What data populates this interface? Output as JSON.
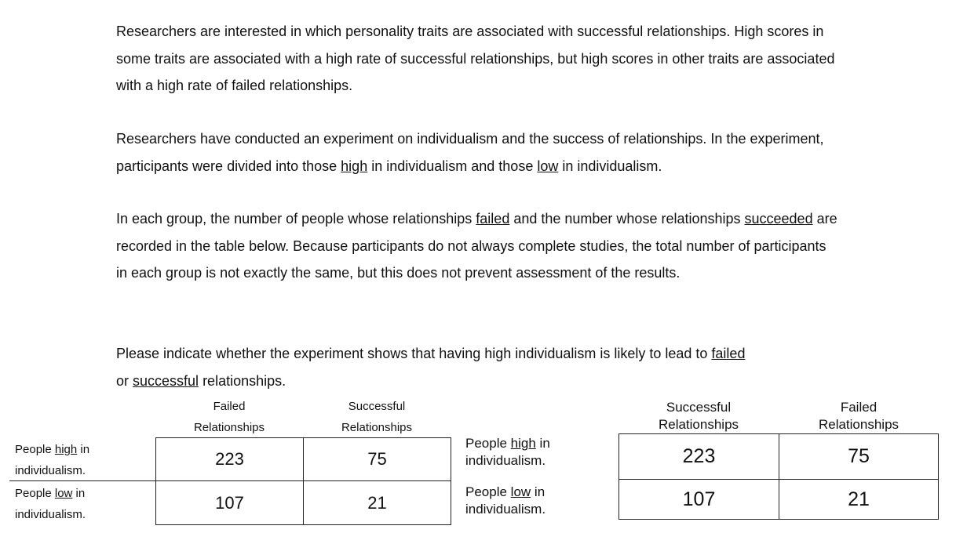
{
  "intro": {
    "p1": "Researchers are interested in which personality traits are associated with successful relationships. High scores in some traits are associated with a high rate of successful relationships, but high scores in other traits are associated with a high rate of failed relationships.",
    "p2_a": "Researchers have conducted an experiment on individualism and the success of relationships. In the experiment, participants were divided into those ",
    "p2_high": "high",
    "p2_b": " in individualism and those ",
    "p2_low": "low",
    "p2_c": " in individualism.",
    "p3_a": "In each group, the number of people whose relationships ",
    "p3_failed": "failed",
    "p3_b": " and the number whose relationships ",
    "p3_succeeded": "succeeded",
    "p3_c": " are recorded in the table below. Because participants do not always complete studies, the total number of participants in each group is not exactly the same, but this does not prevent assessment of the results.",
    "p4_a": "Please indicate whether the experiment shows that having high individualism is likely to lead to ",
    "p4_failed": "failed",
    "p4_or": " or ",
    "p4_successful": "successful",
    "p4_c": " relationships."
  },
  "table_left": {
    "col1_line1": "Failed",
    "col1_line2": "Relationships",
    "col2_line1": "Successful",
    "col2_line2": "Relationships",
    "row1_a": "People ",
    "row1_u": "high",
    "row1_b": " in",
    "row1_line2": "individualism.",
    "row2_a": "People ",
    "row2_u": "low",
    "row2_b": " in",
    "row2_line2": "individualism.",
    "r1c1": "223",
    "r1c2": "75",
    "r2c1": "107",
    "r2c2": "21"
  },
  "table_right": {
    "col1_line1": "Successful",
    "col1_line2": "Relationships",
    "col2_line1": "Failed",
    "col2_line2": "Relationships",
    "row1_a": "People ",
    "row1_u": "high",
    "row1_b": " in",
    "row1_line2": "individualism.",
    "row2_a": "People ",
    "row2_u": "low",
    "row2_b": " in",
    "row2_line2": "individualism.",
    "r1c1": "223",
    "r1c2": "75",
    "r2c1": "107",
    "r2c2": "21"
  }
}
